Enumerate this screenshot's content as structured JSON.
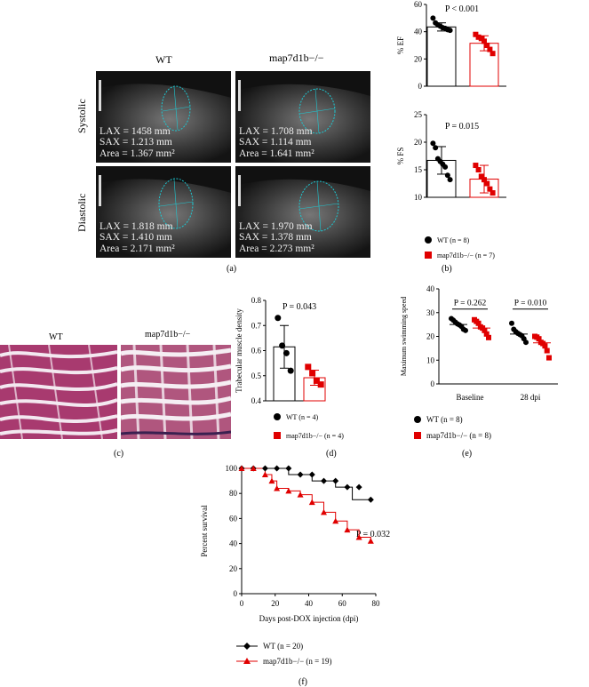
{
  "colors": {
    "wt": "#000000",
    "ko": "#e00000",
    "ultrasound_bg": "#111111",
    "trace": "#1ec8d2"
  },
  "panel_a": {
    "label": "(a)",
    "col_wt": "WT",
    "col_ko": "map7d1b−/−",
    "row_systolic": "Systolic",
    "row_diastolic": "Diastolic",
    "images": [
      {
        "lax": "LAX = 1458 mm",
        "sax": "SAX = 1.213 mm",
        "area": "Area = 1.367 mm²"
      },
      {
        "lax": "LAX = 1.708 mm",
        "sax": "SAX = 1.114 mm",
        "area": "Area = 1.641 mm²"
      },
      {
        "lax": "LAX = 1.818 mm",
        "sax": "SAX = 1.410 mm",
        "area": "Area = 2.171 mm²"
      },
      {
        "lax": "LAX = 1.970 mm",
        "sax": "SAX = 1.378 mm",
        "area": "Area = 2.273 mm²"
      }
    ]
  },
  "panel_b": {
    "label": "(b)",
    "legend_wt": "WT (n = 8)",
    "legend_ko": "map7d1b−/− (n = 7)"
  },
  "panel_c": {
    "label": "(c)",
    "col_wt": "WT",
    "col_ko": "map7d1b−/−"
  },
  "panel_d": {
    "label": "(d)",
    "legend_wt": "WT (n = 4)",
    "legend_ko": "map7d1b−/− (n = 4)"
  },
  "panel_e": {
    "label": "(e)",
    "legend_wt": "WT (n = 8)",
    "legend_ko": "map7d1b−/− (n = 8)"
  },
  "panel_f": {
    "label": "(f)",
    "legend_wt": "WT (n = 20)",
    "legend_ko": "map7d1b−/− (n = 19)"
  },
  "chart_data": [
    {
      "id": "ef",
      "type": "bar",
      "ylabel": "% EF",
      "ylim": [
        0,
        60
      ],
      "yticks": [
        0,
        20,
        40,
        60
      ],
      "pvalue": "P < 0.001",
      "categories": [
        "WT",
        "map7d1b−/−"
      ],
      "means": [
        43.5,
        31.5
      ],
      "sd": [
        3.0,
        5.5
      ],
      "points": [
        [
          50,
          46.5,
          45,
          44,
          43,
          42.5,
          41.5,
          41
        ],
        [
          38,
          36,
          35,
          33,
          30,
          27,
          24
        ]
      ]
    },
    {
      "id": "fs",
      "type": "bar",
      "ylabel": "% FS",
      "ylim": [
        10,
        25
      ],
      "yticks": [
        10,
        15,
        20,
        25
      ],
      "pvalue": "P = 0.015",
      "categories": [
        "WT",
        "map7d1b−/−"
      ],
      "means": [
        16.7,
        13.3
      ],
      "sd": [
        2.5,
        2.5
      ],
      "points": [
        [
          19.8,
          19.0,
          17.0,
          16.5,
          16.0,
          15.5,
          14.0,
          13.2
        ],
        [
          15.8,
          15.0,
          13.8,
          13.2,
          12.5,
          11.5,
          10.8
        ]
      ]
    },
    {
      "id": "trab",
      "type": "bar",
      "ylabel": "Trabecular muscle density",
      "ylim": [
        0.4,
        0.8
      ],
      "yticks": [
        0.4,
        0.5,
        0.6,
        0.7,
        0.8
      ],
      "ytick_labels": [
        "0.4",
        "0.5",
        "0.6",
        "0.7",
        "0.8"
      ],
      "pvalue": "P = 0.043",
      "categories": [
        "WT",
        "map7d1b−/−"
      ],
      "means": [
        0.615,
        0.492
      ],
      "sd": [
        0.085,
        0.03
      ],
      "points": [
        [
          0.73,
          0.62,
          0.59,
          0.52
        ],
        [
          0.535,
          0.51,
          0.48,
          0.465
        ]
      ]
    },
    {
      "id": "swim",
      "type": "scatter",
      "ylabel": "Maximum swimming speed (BL/s)",
      "ylim": [
        0,
        40
      ],
      "yticks": [
        0,
        10,
        20,
        30,
        40
      ],
      "groups": [
        "Baseline",
        "28 dpi"
      ],
      "pvalues": [
        "P = 0.262",
        "P = 0.010"
      ],
      "wt_means": [
        25.0,
        21.0
      ],
      "ko_means": [
        23.5,
        17.3
      ],
      "wt_points": [
        [
          27.5,
          26.8,
          26.0,
          25.3,
          24.8,
          24.2,
          23.0,
          22.5
        ],
        [
          25.5,
          23.0,
          22.0,
          21.3,
          20.8,
          20.3,
          19.0,
          17.5
        ]
      ],
      "ko_points": [
        [
          27.0,
          26.3,
          25.5,
          24.0,
          23.5,
          22.5,
          21.0,
          19.5
        ],
        [
          20.0,
          19.7,
          19.0,
          17.5,
          17.0,
          16.0,
          14.0,
          11.0
        ]
      ]
    },
    {
      "id": "survival",
      "type": "line",
      "xlabel": "Days post-DOX injection (dpi)",
      "ylabel": "Percent survival",
      "xlim": [
        0,
        80
      ],
      "ylim": [
        0,
        100
      ],
      "xticks": [
        0,
        20,
        40,
        60,
        80
      ],
      "yticks": [
        0,
        20,
        40,
        60,
        80,
        100
      ],
      "pvalue": "P = 0.032",
      "series": [
        {
          "name": "WT (n = 20)",
          "x": [
            0,
            7,
            14,
            21,
            28,
            35,
            42,
            49,
            56,
            63,
            70,
            77
          ],
          "y": [
            100,
            100,
            100,
            100,
            100,
            95,
            95,
            90,
            90,
            85,
            85,
            75
          ]
        },
        {
          "name": "map7d1b−/− (n = 19)",
          "x": [
            0,
            7,
            14,
            18,
            21,
            28,
            35,
            42,
            49,
            56,
            63,
            70,
            77
          ],
          "y": [
            100,
            100,
            95,
            90,
            84,
            82,
            79,
            73,
            65,
            58,
            51,
            45,
            42
          ]
        }
      ],
      "steps_wt": [
        [
          0,
          100
        ],
        [
          28,
          100
        ],
        [
          28,
          95
        ],
        [
          42,
          95
        ],
        [
          42,
          90
        ],
        [
          56,
          90
        ],
        [
          56,
          85
        ],
        [
          66,
          85
        ],
        [
          66,
          75
        ],
        [
          77,
          75
        ]
      ],
      "steps_ko": [
        [
          0,
          100
        ],
        [
          14,
          100
        ],
        [
          14,
          95
        ],
        [
          18,
          95
        ],
        [
          18,
          90
        ],
        [
          21,
          90
        ],
        [
          21,
          84
        ],
        [
          28,
          84
        ],
        [
          28,
          82
        ],
        [
          35,
          82
        ],
        [
          35,
          79
        ],
        [
          42,
          79
        ],
        [
          42,
          73
        ],
        [
          49,
          73
        ],
        [
          49,
          65
        ],
        [
          56,
          65
        ],
        [
          56,
          58
        ],
        [
          63,
          58
        ],
        [
          63,
          51
        ],
        [
          70,
          51
        ],
        [
          70,
          45
        ],
        [
          77,
          45
        ],
        [
          77,
          42
        ]
      ]
    }
  ]
}
